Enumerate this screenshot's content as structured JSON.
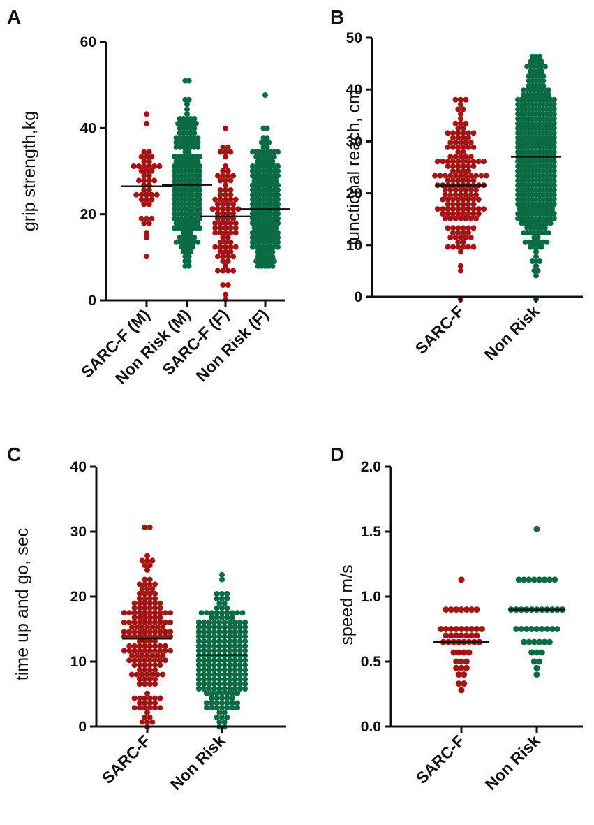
{
  "colors": {
    "risk": "#a31414",
    "nonrisk": "#0b6b45",
    "axis": "#111111"
  },
  "chart_data": [
    {
      "panel": "A",
      "type": "scatter",
      "ylabel": "grip strength,kg",
      "ylim": [
        0,
        60
      ],
      "yticks": [
        0,
        20,
        40,
        60
      ],
      "categories": [
        "SARC-F (M)",
        "Non Risk (M)",
        "SARC-F (F)",
        "Non Risk (F)"
      ],
      "series": [
        {
          "name": "SARC-F (M)",
          "color": "#a31414",
          "min": 10,
          "max": 43,
          "mean": 26.5,
          "count": 46,
          "dense": false
        },
        {
          "name": "Non Risk (M)",
          "color": "#0b6b45",
          "min": 8,
          "max": 51.5,
          "mean": 26.8,
          "count": 260,
          "dense": true
        },
        {
          "name": "SARC-F (F)",
          "color": "#a31414",
          "min": 0,
          "max": 40.5,
          "mean": 19.5,
          "count": 90,
          "dense": false
        },
        {
          "name": "Non Risk (F)",
          "color": "#0b6b45",
          "min": 7.5,
          "max": 48,
          "mean": 21.2,
          "count": 260,
          "dense": true
        }
      ]
    },
    {
      "panel": "B",
      "type": "scatter",
      "ylabel": "functional reach, cm",
      "ylim": [
        0,
        50
      ],
      "yticks": [
        0,
        10,
        20,
        30,
        40,
        50
      ],
      "categories": [
        "SARC-F",
        "Non Risk"
      ],
      "series": [
        {
          "name": "SARC-F",
          "color": "#a31414",
          "min": 0,
          "max": 38,
          "mean": 21.5,
          "count": 170,
          "dense": false
        },
        {
          "name": "Non Risk",
          "color": "#0b6b45",
          "min": 0,
          "max": 46,
          "mean": 27,
          "count": 520,
          "dense": true
        }
      ]
    },
    {
      "panel": "C",
      "type": "scatter",
      "ylabel": "time up and go, sec",
      "ylim": [
        0,
        40
      ],
      "yticks": [
        0,
        10,
        20,
        30,
        40
      ],
      "categories": [
        "SARC-F",
        "Non Risk"
      ],
      "series": [
        {
          "name": "SARC-F",
          "color": "#a31414",
          "min": 0,
          "max": 31,
          "mean": 13.5,
          "count": 190,
          "dense": false
        },
        {
          "name": "Non Risk",
          "color": "#0b6b45",
          "min": 0,
          "max": 23,
          "mean": 11,
          "count": 260,
          "dense": false
        }
      ]
    },
    {
      "panel": "D",
      "type": "scatter",
      "ylabel": "speed m/s",
      "ylim": [
        0,
        2.0
      ],
      "yticks": [
        "0.0",
        "0.5",
        "1.0",
        "1.5",
        "2.0"
      ],
      "categories": [
        "SARC-F",
        "Non Risk"
      ],
      "series": [
        {
          "name": "SARC-F",
          "color": "#a31414",
          "mean": 0.65,
          "levels": [
            [
              1.13,
              1
            ],
            [
              0.9,
              7
            ],
            [
              0.75,
              9
            ],
            [
              0.7,
              7
            ],
            [
              0.65,
              8
            ],
            [
              0.57,
              4
            ],
            [
              0.5,
              3
            ],
            [
              0.45,
              3
            ],
            [
              0.4,
              2
            ],
            [
              0.33,
              2
            ],
            [
              0.28,
              1
            ]
          ]
        },
        {
          "name": "Non Risk",
          "color": "#0b6b45",
          "mean": 0.9,
          "levels": [
            [
              1.52,
              1
            ],
            [
              1.13,
              8
            ],
            [
              0.9,
              11
            ],
            [
              0.75,
              9
            ],
            [
              0.65,
              6
            ],
            [
              0.57,
              3
            ],
            [
              0.5,
              2
            ],
            [
              0.45,
              1
            ],
            [
              0.4,
              1
            ]
          ]
        }
      ]
    }
  ]
}
